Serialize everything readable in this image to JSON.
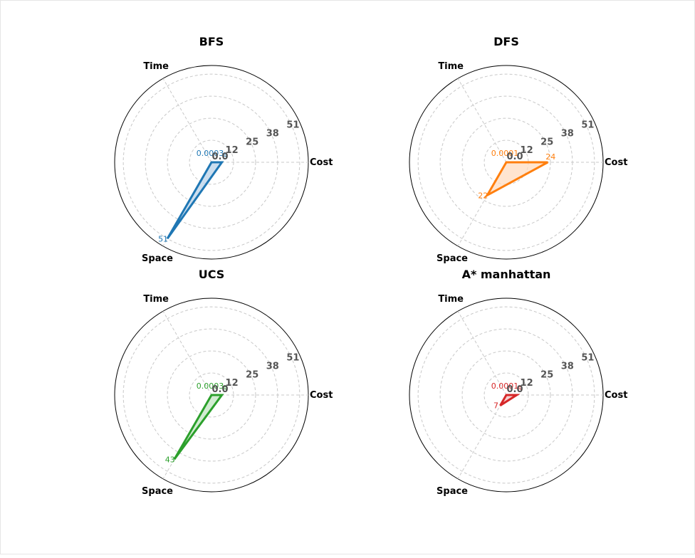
{
  "chart_data": [
    {
      "type": "radar",
      "title": "BFS",
      "axes": [
        "Cost",
        "Time",
        "Space"
      ],
      "values": [
        6,
        0.0003,
        51
      ],
      "value_labels": [
        "6",
        "0.0003",
        "51"
      ],
      "ticks": [
        "0.0",
        "12",
        "25",
        "38",
        "51"
      ],
      "tick_values": [
        0,
        12.75,
        25.5,
        38.25,
        51
      ],
      "rmax": 56,
      "color": "#1f77b4",
      "fill": "#b9d3ea"
    },
    {
      "type": "radar",
      "title": "DFS",
      "axes": [
        "Cost",
        "Time",
        "Space"
      ],
      "values": [
        24,
        0.0001,
        22
      ],
      "value_labels": [
        "24",
        "0.0001",
        "22"
      ],
      "ticks": [
        "0.0",
        "12",
        "25",
        "38",
        "51"
      ],
      "tick_values": [
        0,
        12.75,
        25.5,
        38.25,
        51
      ],
      "rmax": 56,
      "color": "#ff7f0e",
      "fill": "#ffdcc0"
    },
    {
      "type": "radar",
      "title": "UCS",
      "axes": [
        "Cost",
        "Time",
        "Space"
      ],
      "values": [
        6,
        0.0003,
        43
      ],
      "value_labels": [
        "6",
        "0.0003",
        "43"
      ],
      "ticks": [
        "0.0",
        "12",
        "25",
        "38",
        "51"
      ],
      "tick_values": [
        0,
        12.75,
        25.5,
        38.25,
        51
      ],
      "rmax": 56,
      "color": "#2ca02c",
      "fill": "#c3e5c3"
    },
    {
      "type": "radar",
      "title": "A* manhattan",
      "axes": [
        "Cost",
        "Time",
        "Space"
      ],
      "values": [
        6,
        0.0001,
        7
      ],
      "value_labels": [
        "6",
        "0.0001",
        "7"
      ],
      "ticks": [
        "0.0",
        "12",
        "25",
        "38",
        "51"
      ],
      "tick_values": [
        0,
        12.75,
        25.5,
        38.25,
        51
      ],
      "rmax": 56,
      "color": "#d62728",
      "fill": "#f3c0c0"
    }
  ]
}
